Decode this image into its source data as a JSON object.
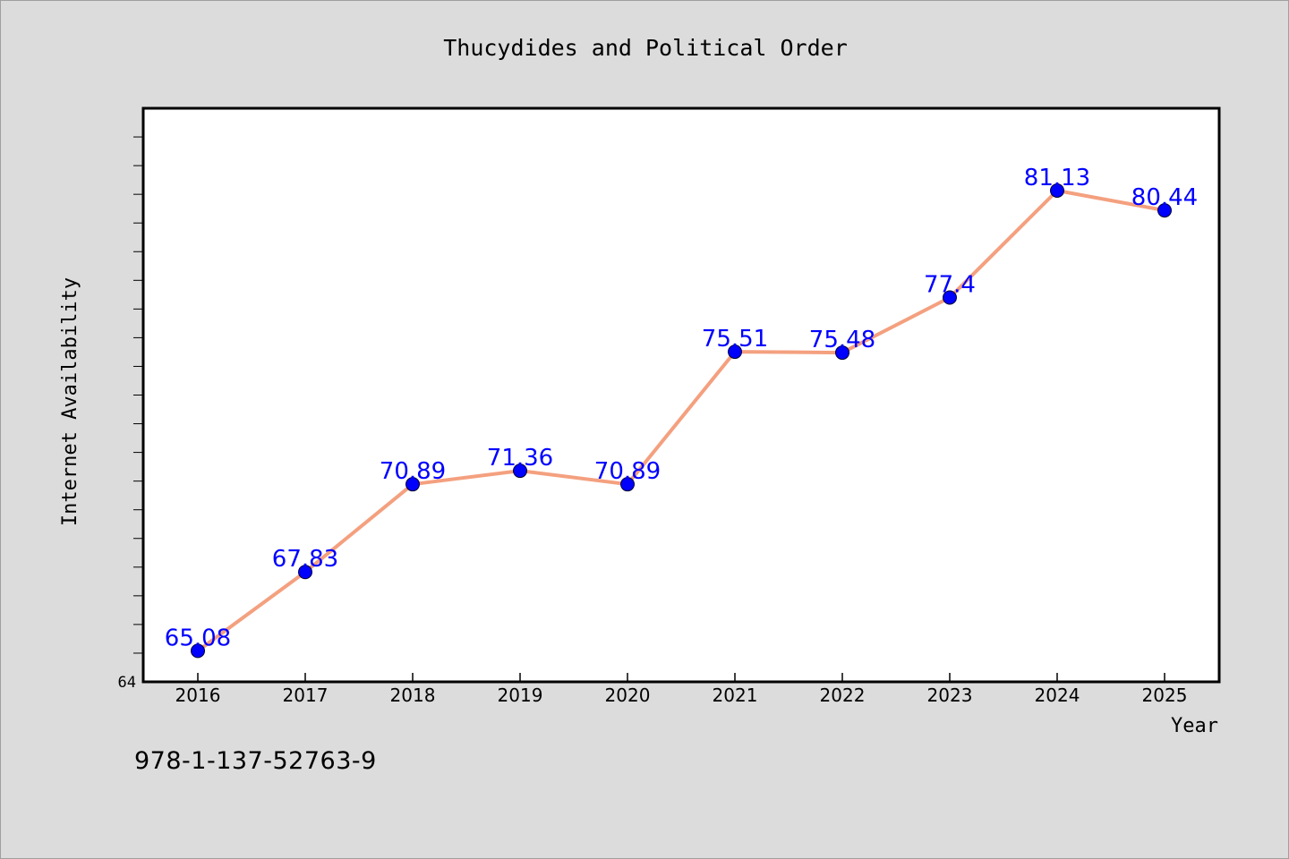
{
  "chart_data": {
    "type": "line",
    "title": "Thucydides and Political Order",
    "xlabel": "Year",
    "ylabel": "Internet Availability",
    "categories": [
      "2016",
      "2017",
      "2018",
      "2019",
      "2020",
      "2021",
      "2022",
      "2023",
      "2024",
      "2025"
    ],
    "values": [
      65.08,
      67.83,
      70.89,
      71.36,
      70.89,
      75.51,
      75.48,
      77.4,
      81.13,
      80.44
    ],
    "data_labels": [
      "65.08",
      "67.83",
      "70.89",
      "71.36",
      "70.89",
      "75.51",
      "75.48",
      "77.4",
      "81.13",
      "80.44"
    ],
    "y_tick_labels": [
      "64"
    ],
    "ylim": [
      64,
      84
    ],
    "grid": false,
    "legend": "none",
    "colors": {
      "line": "#f4a07f",
      "marker": "#0000ff",
      "data_label": "#0000ff",
      "plot_background": "#ffffff",
      "page_background": "#dcdcdc"
    }
  },
  "footer": {
    "code": "978-1-137-52763-9"
  }
}
